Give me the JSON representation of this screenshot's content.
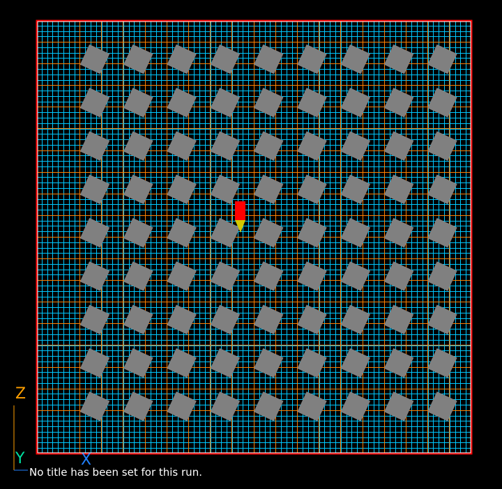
{
  "viewport": {
    "run_title": "No title has been set for this run.",
    "axes": {
      "z_label": "Z",
      "y_label": "Y",
      "x_label": "X"
    },
    "colors": {
      "background": "#000000",
      "border": "#ff0000",
      "minor_grid": "#00c8ff",
      "major_grid": "#ff7f00",
      "stock_parts": "#808080",
      "tool_body": "#ff0000",
      "tool_tip": "#d4c800",
      "z_axis": "#ff9f00",
      "y_axis": "#00e0a0",
      "x_axis": "#2080ff"
    },
    "parts_grid": {
      "rows": 9,
      "columns": 9,
      "rotation_deg": 25
    },
    "tool": {
      "icon": "cutting-tool-icon"
    }
  }
}
